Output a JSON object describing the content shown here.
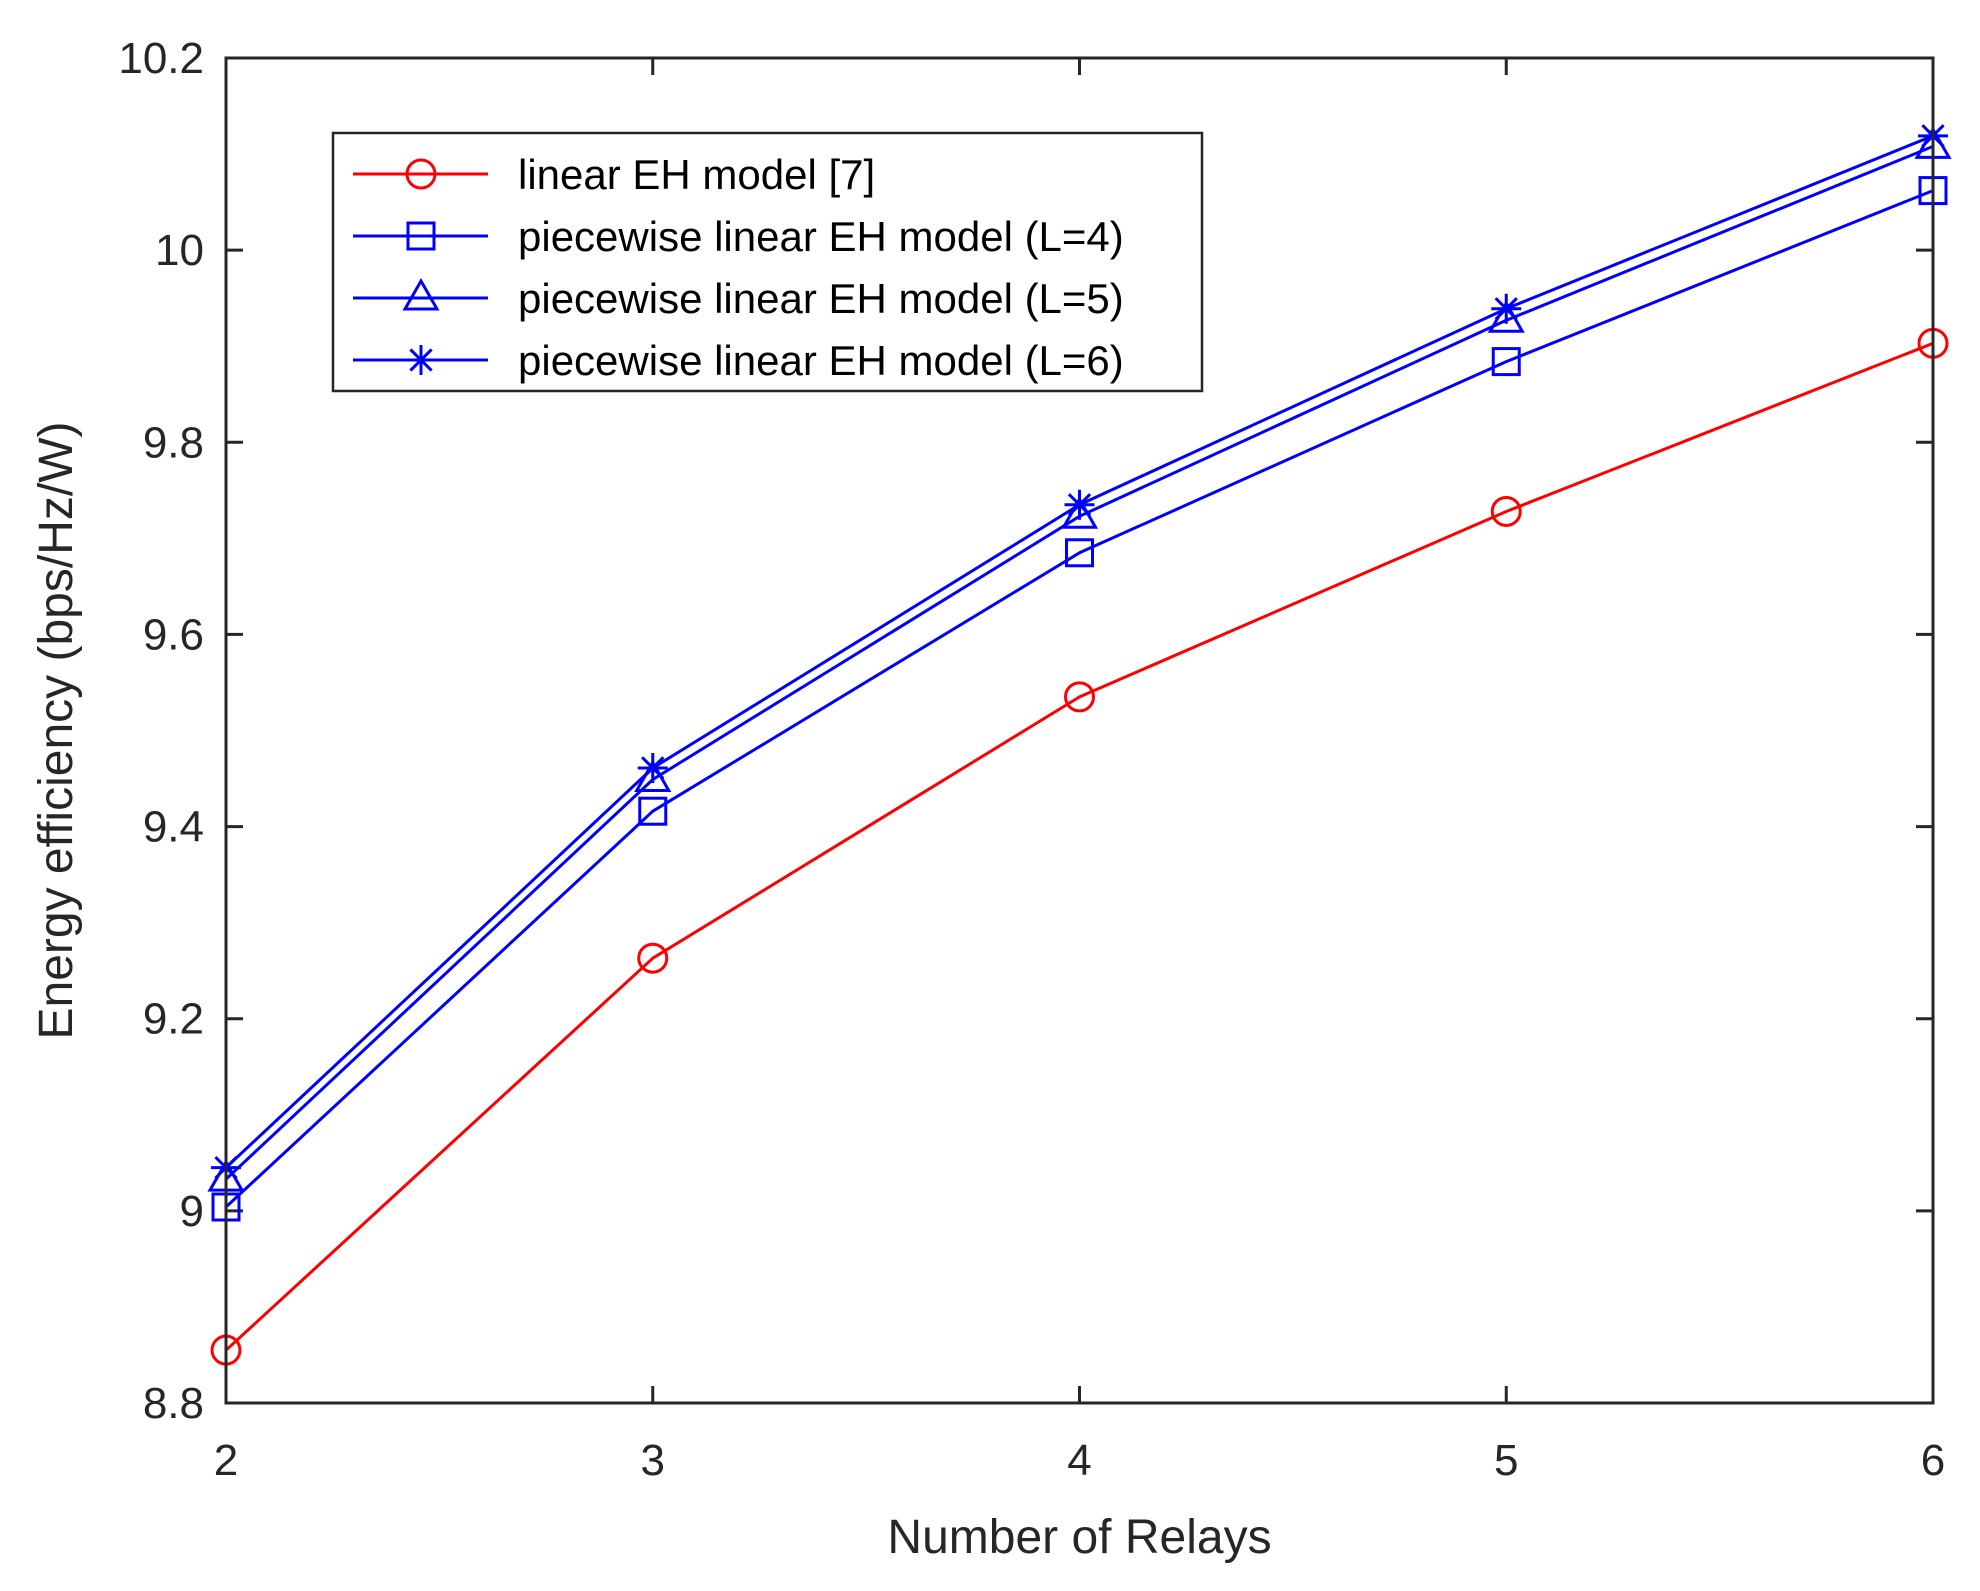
{
  "chart_data": {
    "type": "line",
    "title": "",
    "xlabel": "Number of Relays",
    "ylabel": "Energy efficiency (bps/Hz/W)",
    "x": [
      2,
      3,
      4,
      5,
      6
    ],
    "xlim": [
      2,
      6
    ],
    "ylim": [
      8.8,
      10.2
    ],
    "xticks": [
      2,
      3,
      4,
      5,
      6
    ],
    "yticks": [
      8.8,
      9,
      9.2,
      9.4,
      9.6,
      9.8,
      10,
      10.2
    ],
    "xtick_labels": [
      "2",
      "3",
      "4",
      "5",
      "6"
    ],
    "ytick_labels": [
      "8.8",
      "9",
      "9.2",
      "9.4",
      "9.6",
      "9.8",
      "10",
      "10.2"
    ],
    "grid": false,
    "legend_position": "top-left",
    "series": [
      {
        "name": "linear EH model [7]",
        "color": "#ff0000",
        "marker": "circle",
        "values": [
          8.855,
          9.263,
          9.535,
          9.728,
          9.903
        ]
      },
      {
        "name": "piecewise linear EH model (L=4)",
        "color": "#0000ff",
        "marker": "square",
        "values": [
          9.004,
          9.416,
          9.685,
          9.884,
          10.062
        ]
      },
      {
        "name": "piecewise linear EH model (L=5)",
        "color": "#0000ff",
        "marker": "triangle",
        "values": [
          9.033,
          9.449,
          9.723,
          9.927,
          10.108
        ]
      },
      {
        "name": "piecewise linear EH model (L=6)",
        "color": "#0000ff",
        "marker": "star",
        "values": [
          9.045,
          9.461,
          9.735,
          9.939,
          10.119
        ]
      }
    ]
  }
}
